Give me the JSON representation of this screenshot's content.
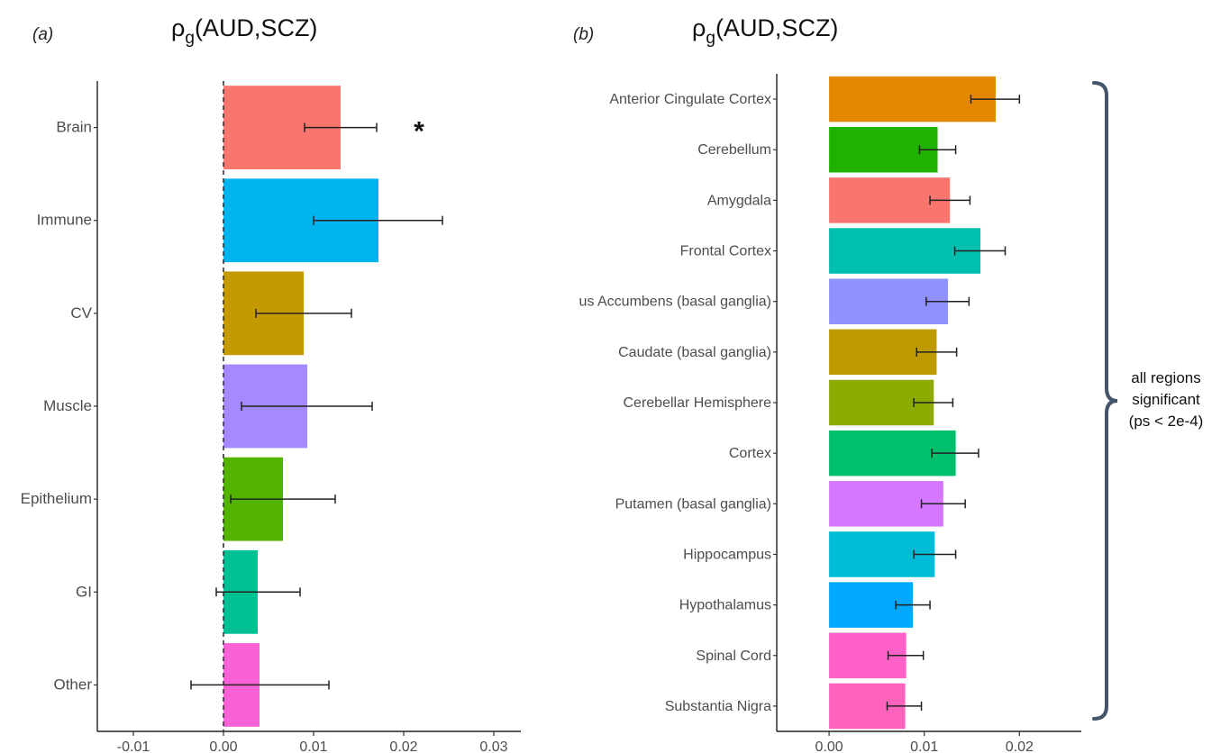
{
  "charts": [
    {
      "panel_label": "(a)",
      "title_prefix": "ρ",
      "title_sub": "g",
      "title_suffix": "(AUD,SCZ)",
      "chart_data": {
        "type": "bar",
        "orientation": "horizontal",
        "categories": [
          "Brain",
          "Immune",
          "CV",
          "Muscle",
          "Epithelium",
          "GI",
          "Other"
        ],
        "values": [
          0.013,
          0.0172,
          0.0089,
          0.0093,
          0.0066,
          0.0038,
          0.004
        ],
        "error_low": [
          0.009,
          0.01,
          0.0036,
          0.002,
          0.0008,
          -0.0008,
          -0.0036
        ],
        "error_high": [
          0.017,
          0.0243,
          0.0142,
          0.0165,
          0.0124,
          0.0085,
          0.0117
        ],
        "colors": [
          "#F8766D",
          "#00B4EF",
          "#C49A00",
          "#A58AFF",
          "#53B400",
          "#00C094",
          "#FB61D7"
        ],
        "xlim": [
          -0.014,
          0.033
        ],
        "xticks": [
          -0.01,
          0.0,
          0.01,
          0.02,
          0.03
        ],
        "xtick_labels": [
          "-0.01",
          "0.00",
          "0.01",
          "0.02",
          "0.03"
        ],
        "reference_line": 0.0,
        "annotation": {
          "category": "Brain",
          "x": 0.0217,
          "text": "*"
        }
      }
    },
    {
      "panel_label": "(b)",
      "title_prefix": "ρ",
      "title_sub": "g",
      "title_suffix": "(AUD,SCZ)",
      "chart_data": {
        "type": "bar",
        "orientation": "horizontal",
        "categories": [
          "Anterior Cingulate Cortex",
          "Cerebellum",
          "Amygdala",
          "Frontal Cortex",
          "us Accumbens (basal ganglia)",
          "Caudate (basal ganglia)",
          "Cerebellar Hemisphere",
          "Cortex",
          "Putamen (basal ganglia)",
          "Hippocampus",
          "Hypothalamus",
          "Spinal Cord",
          "Substantia Nigra"
        ],
        "values": [
          0.0175,
          0.0114,
          0.0127,
          0.0159,
          0.0125,
          0.0113,
          0.011,
          0.0133,
          0.012,
          0.0111,
          0.0088,
          0.0081,
          0.008
        ],
        "error_low": [
          0.0149,
          0.0095,
          0.0106,
          0.0132,
          0.0102,
          0.0092,
          0.0089,
          0.0108,
          0.0097,
          0.0089,
          0.007,
          0.0062,
          0.0061
        ],
        "error_high": [
          0.02,
          0.0133,
          0.0148,
          0.0185,
          0.0147,
          0.0134,
          0.013,
          0.0157,
          0.0143,
          0.0133,
          0.0106,
          0.0099,
          0.0097
        ],
        "colors": [
          "#E58700",
          "#1FB300",
          "#F8766D",
          "#00BFAE",
          "#8F91FF",
          "#C09B00",
          "#8BAB00",
          "#00C06B",
          "#D678FF",
          "#00BCD8",
          "#00A9FF",
          "#FF61C9",
          "#FF62BC"
        ],
        "xlim": [
          -0.0055,
          0.0265
        ],
        "xticks": [
          0.0,
          0.01,
          0.02
        ],
        "xtick_labels": [
          "0.00",
          "0.01",
          "0.02"
        ],
        "bracket_text": [
          "all regions",
          "significant",
          "(ps < 2e-4)"
        ]
      }
    }
  ]
}
